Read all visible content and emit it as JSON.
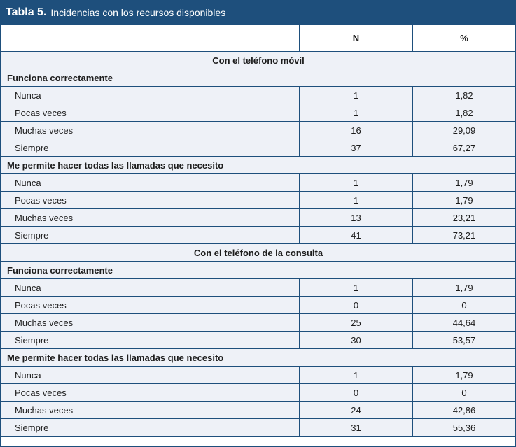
{
  "title": {
    "label": "Tabla 5.",
    "text": "Incidencias con los recursos disponibles"
  },
  "columns": {
    "n": "N",
    "pct": "%"
  },
  "sections": [
    {
      "heading": "Con el teléfono móvil",
      "questions": [
        {
          "label": "Funciona correctamente",
          "rows": [
            {
              "label": "Nunca",
              "n": "1",
              "pct": "1,82"
            },
            {
              "label": "Pocas veces",
              "n": "1",
              "pct": "1,82"
            },
            {
              "label": "Muchas veces",
              "n": "16",
              "pct": "29,09"
            },
            {
              "label": "Siempre",
              "n": "37",
              "pct": "67,27"
            }
          ]
        },
        {
          "label": "Me permite hacer todas las llamadas que necesito",
          "rows": [
            {
              "label": "Nunca",
              "n": "1",
              "pct": "1,79"
            },
            {
              "label": "Pocas veces",
              "n": "1",
              "pct": "1,79"
            },
            {
              "label": "Muchas veces",
              "n": "13",
              "pct": "23,21"
            },
            {
              "label": "Siempre",
              "n": "41",
              "pct": "73,21"
            }
          ]
        }
      ]
    },
    {
      "heading": "Con el teléfono de la consulta",
      "questions": [
        {
          "label": "Funciona correctamente",
          "rows": [
            {
              "label": "Nunca",
              "n": "1",
              "pct": "1,79"
            },
            {
              "label": "Pocas veces",
              "n": "0",
              "pct": "0"
            },
            {
              "label": "Muchas veces",
              "n": "25",
              "pct": "44,64"
            },
            {
              "label": "Siempre",
              "n": "30",
              "pct": "53,57"
            }
          ]
        },
        {
          "label": "Me permite hacer todas las llamadas que necesito",
          "rows": [
            {
              "label": "Nunca",
              "n": "1",
              "pct": "1,79"
            },
            {
              "label": "Pocas veces",
              "n": "0",
              "pct": "0"
            },
            {
              "label": "Muchas veces",
              "n": "24",
              "pct": "42,86"
            },
            {
              "label": "Siempre",
              "n": "31",
              "pct": "55,36"
            }
          ]
        }
      ]
    }
  ]
}
